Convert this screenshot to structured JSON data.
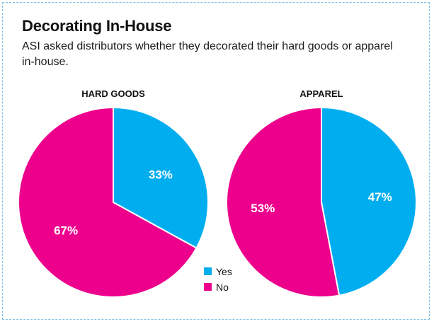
{
  "title": "Decorating In-House",
  "subtitle": "ASI asked distributors whether they decorated their hard goods or apparel in-house.",
  "colors": {
    "yes": "#00aeef",
    "no": "#ec008c",
    "frame": "#7ec3e6"
  },
  "chart_data": [
    {
      "type": "pie",
      "title": "HARD GOODS",
      "slices": [
        {
          "name": "Yes",
          "value": 33,
          "label": "33%"
        },
        {
          "name": "No",
          "value": 67,
          "label": "67%"
        }
      ]
    },
    {
      "type": "pie",
      "title": "APPAREL",
      "slices": [
        {
          "name": "Yes",
          "value": 47,
          "label": "47%"
        },
        {
          "name": "No",
          "value": 53,
          "label": "53%"
        }
      ]
    }
  ],
  "legend": [
    {
      "name": "Yes",
      "color": "#00aeef"
    },
    {
      "name": "No",
      "color": "#ec008c"
    }
  ]
}
